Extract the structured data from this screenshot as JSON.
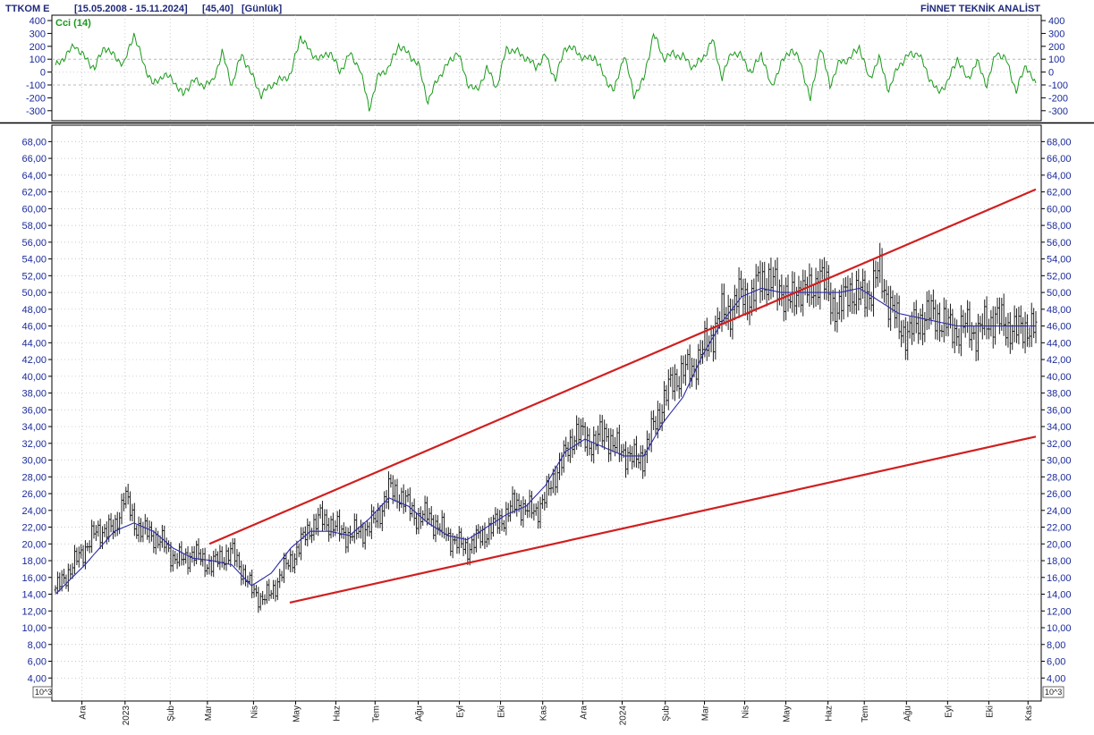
{
  "header": {
    "symbol": "TTKOM E",
    "range": "[15.05.2008 - 15.11.2024]",
    "last": "[45,40]",
    "period": "[Günlük]",
    "brand": "FİNNET TEKNİK ANALİST"
  },
  "unit_label": "10^3",
  "colors": {
    "background": "#ffffff",
    "frame": "#000000",
    "grid": "#b8b8b8",
    "price_bars": "#202020",
    "moving_average": "#2a2aa8",
    "trend_lines": "#d11f1f",
    "cci": "#1a9a1a",
    "axis_text": "#1a2a9a"
  },
  "chart_data": [
    {
      "type": "line",
      "title": "Cci (14)",
      "ylim": [
        -350,
        400
      ],
      "yticks": [
        400,
        300,
        200,
        100,
        0,
        -100,
        -200,
        -300
      ],
      "reference_lines": [
        100,
        -100
      ],
      "x_range": [
        0,
        100
      ],
      "series": [
        {
          "name": "Cci (14)",
          "x": [
            0,
            2,
            3,
            4,
            5,
            6,
            7,
            8,
            9,
            10,
            11,
            12,
            13,
            14,
            15,
            16,
            17,
            18,
            19,
            20,
            21,
            22,
            23,
            24,
            25,
            26,
            27,
            28,
            29,
            30,
            31,
            32,
            33,
            34,
            35,
            36,
            37,
            38,
            39,
            40,
            41,
            42,
            43,
            44,
            45,
            46,
            47,
            48,
            49,
            50,
            51,
            52,
            53,
            54,
            55,
            56,
            57,
            58,
            59,
            60,
            61,
            62,
            63,
            64,
            65,
            66,
            67,
            68,
            69,
            70,
            71,
            72,
            73,
            74,
            75,
            76,
            77,
            78,
            79,
            80,
            81,
            82,
            83,
            84,
            85,
            86,
            87,
            88,
            89,
            90,
            91,
            92,
            93,
            94,
            95,
            96,
            97,
            98,
            99,
            100
          ],
          "values": [
            40,
            210,
            110,
            30,
            200,
            120,
            60,
            300,
            60,
            -100,
            -20,
            -60,
            -180,
            -60,
            -100,
            -80,
            150,
            -100,
            140,
            -20,
            -180,
            -100,
            -60,
            -20,
            280,
            150,
            100,
            160,
            0,
            140,
            40,
            -280,
            -20,
            30,
            210,
            140,
            60,
            -230,
            -50,
            60,
            160,
            -80,
            -150,
            30,
            -120,
            180,
            160,
            110,
            40,
            130,
            -60,
            200,
            170,
            100,
            120,
            -40,
            -150,
            140,
            -180,
            -60,
            300,
            110,
            140,
            120,
            40,
            100,
            250,
            -40,
            160,
            120,
            -10,
            150,
            -120,
            60,
            180,
            80,
            -220,
            200,
            -100,
            80,
            100,
            200,
            -60,
            110,
            -140,
            50,
            130,
            150,
            -20,
            -160,
            -80,
            110,
            -60,
            80,
            -100,
            160,
            90,
            -150,
            60,
            -110
          ]
        }
      ]
    },
    {
      "type": "candlestick",
      "title": "TTKOM E",
      "ylim": [
        2,
        69
      ],
      "yticks": [
        "68,00",
        "66,00",
        "64,00",
        "62,00",
        "60,00",
        "58,00",
        "56,00",
        "54,00",
        "52,00",
        "50,00",
        "48,00",
        "46,00",
        "44,00",
        "42,00",
        "40,00",
        "38,00",
        "36,00",
        "34,00",
        "32,00",
        "30,00",
        "28,00",
        "26,00",
        "24,00",
        "22,00",
        "20,00",
        "18,00",
        "16,00",
        "14,00",
        "12,00",
        "10,00",
        "8,00",
        "6,00",
        "4,00"
      ],
      "x_range": [
        0,
        100
      ],
      "categories": [
        "Ara",
        "2023",
        "Şub",
        "Mar",
        "Nis",
        "May",
        "Haz",
        "Tem",
        "Ağu",
        "Eyl",
        "Eki",
        "Kas",
        "Ara",
        "2024",
        "Şub",
        "Mar",
        "Nis",
        "May",
        "Haz",
        "Tem",
        "Ağu",
        "Eyl",
        "Eki",
        "Kas"
      ],
      "category_x": [
        2.7,
        7.1,
        11.7,
        15.5,
        20.2,
        24.5,
        28.6,
        32.6,
        37,
        41.2,
        45.4,
        49.7,
        53.8,
        57.8,
        62.2,
        66.2,
        70.3,
        74.5,
        78.8,
        82.5,
        86.8,
        91,
        95.2,
        99.2
      ],
      "series": [
        {
          "name": "Price",
          "x": [
            0,
            2,
            4,
            5,
            6,
            7,
            8,
            9,
            10,
            11,
            12,
            13,
            14,
            15,
            16,
            17,
            18,
            19,
            20,
            21,
            22,
            23,
            24,
            25,
            26,
            27,
            28,
            29,
            30,
            31,
            32,
            33,
            34,
            35,
            36,
            37,
            38,
            39,
            40,
            41,
            42,
            43,
            44,
            45,
            46,
            47,
            48,
            49,
            50,
            51,
            52,
            53,
            54,
            55,
            56,
            57,
            58,
            59,
            60,
            61,
            62,
            63,
            64,
            65,
            66,
            67,
            68,
            69,
            70,
            71,
            72,
            73,
            74,
            75,
            76,
            77,
            78,
            79,
            80,
            81,
            82,
            83,
            84,
            85,
            86,
            87,
            88,
            89,
            90,
            91,
            92,
            93,
            94,
            95,
            96,
            97,
            98,
            99,
            100
          ],
          "values": [
            14.5,
            17.8,
            21.2,
            21.8,
            21.5,
            26.0,
            22.5,
            21.5,
            21.0,
            20.0,
            18.5,
            18.0,
            19.0,
            18.0,
            17.5,
            18.5,
            19.0,
            17.0,
            14.5,
            13.5,
            14.0,
            16.5,
            18.0,
            20.0,
            22.0,
            23.0,
            22.5,
            21.5,
            21.0,
            21.5,
            22.0,
            23.5,
            26.5,
            26.0,
            24.5,
            23.0,
            23.5,
            22.0,
            21.0,
            20.0,
            19.5,
            20.5,
            21.5,
            22.5,
            23.5,
            25.0,
            24.0,
            24.0,
            25.5,
            28.5,
            30.5,
            33.5,
            32.5,
            32.0,
            33.5,
            31.5,
            31.0,
            30.0,
            30.5,
            34.0,
            37.0,
            39.5,
            40.5,
            41.0,
            43.0,
            45.0,
            47.5,
            48.0,
            50.0,
            49.0,
            52.0,
            51.0,
            50.5,
            48.5,
            51.0,
            49.5,
            52.5,
            49.0,
            48.0,
            50.5,
            49.5,
            50.0,
            52.5,
            49.0,
            46.0,
            45.0,
            46.5,
            47.5,
            47.0,
            46.0,
            45.4,
            46.0,
            45.0,
            46.5,
            47.0,
            46.0,
            45.4,
            46.0,
            45.4
          ]
        },
        {
          "name": "Moving average",
          "x": [
            0,
            3,
            6,
            8,
            10,
            12,
            14,
            16,
            18,
            20,
            22,
            24,
            26,
            28,
            30,
            32,
            34,
            36,
            38,
            40,
            42,
            44,
            46,
            48,
            50,
            52,
            54,
            56,
            58,
            60,
            62,
            64,
            66,
            68,
            70,
            72,
            74,
            76,
            78,
            80,
            82,
            84,
            86,
            88,
            90,
            92,
            94,
            96,
            98,
            100
          ],
          "values": [
            14.0,
            17.5,
            21.5,
            22.5,
            21.5,
            19.5,
            18.3,
            18.0,
            17.5,
            15.0,
            16.5,
            19.5,
            21.5,
            21.5,
            21.0,
            23.0,
            25.5,
            24.5,
            22.5,
            21.0,
            20.5,
            22.0,
            23.5,
            24.5,
            27.0,
            31.0,
            32.5,
            31.5,
            30.5,
            30.5,
            34.5,
            37.5,
            42.5,
            46.5,
            49.5,
            50.5,
            50.0,
            50.0,
            50.0,
            50.0,
            50.5,
            49.0,
            47.5,
            47.0,
            46.5,
            46.0,
            46.0,
            46.0,
            46.0,
            46.0
          ]
        }
      ],
      "trend_lines": [
        {
          "name": "Upper trend line",
          "x": [
            15.7,
            100
          ],
          "values": [
            20.0,
            62.3
          ]
        },
        {
          "name": "Lower trend line",
          "x": [
            23.9,
            100
          ],
          "values": [
            13.0,
            32.8
          ]
        }
      ]
    }
  ]
}
